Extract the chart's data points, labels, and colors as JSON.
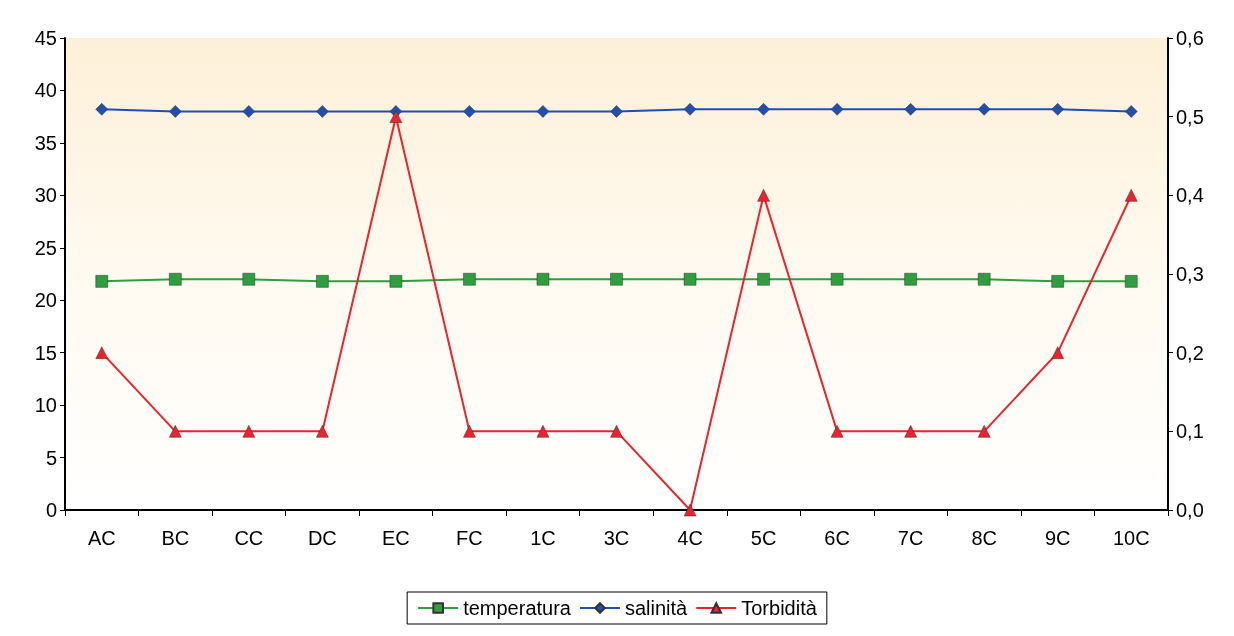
{
  "chart_data": {
    "type": "line",
    "categories": [
      "AC",
      "BC",
      "CC",
      "DC",
      "EC",
      "FC",
      "1C",
      "3C",
      "4C",
      "5C",
      "6C",
      "7C",
      "8C",
      "9C",
      "10C"
    ],
    "series": [
      {
        "name": "temperatura",
        "color": "#2e9e3e",
        "marker": "square",
        "values": [
          21.8,
          22,
          22,
          21.8,
          21.8,
          22,
          22,
          22,
          22,
          22,
          22,
          22,
          22,
          21.8,
          21.8
        ]
      },
      {
        "name": "salinità",
        "color": "#1f4fb0",
        "marker": "diamond",
        "values": [
          38.2,
          38,
          38,
          38,
          38,
          38,
          38,
          38,
          38.2,
          38.2,
          38.2,
          38.2,
          38.2,
          38.2,
          38
        ]
      },
      {
        "name": "Torbidità",
        "color": "#e8242c",
        "marker": "triangle",
        "axis": "y2",
        "values": [
          0.2,
          0.1,
          0.1,
          0.1,
          0.5,
          0.1,
          0.1,
          0.1,
          0,
          0.4,
          0.1,
          0.1,
          0.1,
          0.2,
          0.4
        ]
      }
    ],
    "ylim": [
      0,
      45
    ],
    "yticks": [
      0,
      5,
      10,
      15,
      20,
      25,
      30,
      35,
      40,
      45
    ],
    "y2lim": [
      0,
      0.6
    ],
    "y2ticks": [
      {
        "value": 0,
        "label": "0,0"
      },
      {
        "value": 0.1,
        "label": "0,1"
      },
      {
        "value": 0.2,
        "label": "0,2"
      },
      {
        "value": 0.3,
        "label": "0,3"
      },
      {
        "value": 0.4,
        "label": "0,4"
      },
      {
        "value": 0.5,
        "label": "0,5"
      },
      {
        "value": 0.6,
        "label": "0,6"
      }
    ],
    "grid": false,
    "legend": "bottom"
  }
}
